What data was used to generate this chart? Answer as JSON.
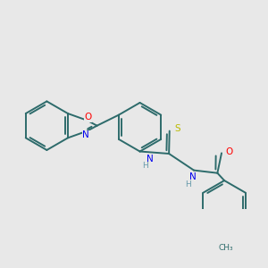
{
  "background_color": "#e8e8e8",
  "bond_color": "#2d6b6b",
  "atom_colors": {
    "O": "#ff0000",
    "N": "#0000ee",
    "S": "#bbbb00",
    "C": "#2d6b6b",
    "H": "#6699aa"
  },
  "lw": 1.4,
  "font_size": 7.5
}
